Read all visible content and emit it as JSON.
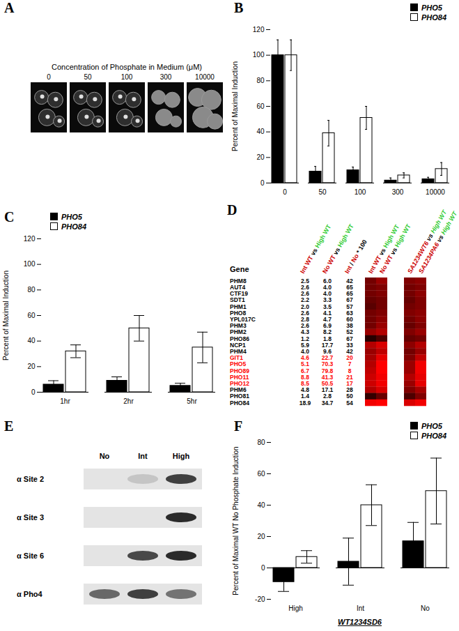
{
  "panel_A": {
    "panel_label": "A",
    "title": "Concentration of Phosphate in Medium (μM)",
    "image_labels": [
      "0",
      "50",
      "100",
      "300",
      "10000"
    ]
  },
  "chart_data": [
    {
      "panel_label": "B",
      "type": "bar",
      "categories": [
        "0",
        "50",
        "100",
        "300",
        "10000"
      ],
      "series": [
        {
          "name": "PHO5",
          "color": "#000000",
          "values": [
            100,
            9,
            10,
            2,
            3
          ],
          "errors": [
            12,
            4,
            2.5,
            2,
            1.5
          ]
        },
        {
          "name": "PHO84",
          "color": "#ffffff",
          "values": [
            100,
            39,
            51,
            6,
            11
          ],
          "errors": [
            12,
            10,
            9,
            2,
            5
          ]
        }
      ],
      "ylim": [
        0,
        120
      ],
      "yticks": [
        0,
        20,
        40,
        60,
        80,
        100,
        120
      ],
      "y_label": "Percent of Maximal Induction",
      "legend": "top-right",
      "grid": false
    },
    {
      "panel_label": "C",
      "type": "bar",
      "categories": [
        "1hr",
        "2hr",
        "5hr"
      ],
      "series": [
        {
          "name": "PHO5",
          "color": "#000000",
          "values": [
            6,
            9,
            5
          ],
          "errors": [
            3,
            3,
            2
          ]
        },
        {
          "name": "PHO84",
          "color": "#ffffff",
          "values": [
            32,
            50,
            35
          ],
          "errors": [
            5,
            10,
            12
          ]
        }
      ],
      "ylim": [
        0,
        120
      ],
      "yticks": [
        0,
        20,
        40,
        60,
        80,
        100,
        120
      ],
      "y_label": "Percent of Maximal Induction",
      "legend": "top-left",
      "grid": false
    },
    {
      "panel_label": "F",
      "type": "bar",
      "categories": [
        "High",
        "Int",
        "No"
      ],
      "series": [
        {
          "name": "PHO5",
          "color": "#000000",
          "values": [
            -9,
            4,
            17
          ],
          "errors": [
            6,
            15,
            12
          ]
        },
        {
          "name": "PHO84",
          "color": "#ffffff",
          "values": [
            7,
            40,
            49
          ],
          "errors": [
            4,
            13,
            21
          ]
        }
      ],
      "ylim": [
        -20,
        80
      ],
      "yticks": [
        -20,
        0,
        20,
        40,
        60,
        80
      ],
      "y_label": "Percent of Maximal WT No Phosphate Induction",
      "x_label": "WT1234SD6",
      "legend": "top-right",
      "grid": false
    }
  ],
  "panel_D": {
    "panel_label": "D",
    "gene_header": "Gene",
    "number_headers": [
      [
        {
          "text": "Int WT",
          "color": "#cc0000"
        },
        {
          "text": " vs ",
          "color": "#000000"
        },
        {
          "text": "High WT",
          "color": "#33cc33"
        }
      ],
      [
        {
          "text": "No WT",
          "color": "#cc0000"
        },
        {
          "text": " vs ",
          "color": "#000000"
        },
        {
          "text": "High WT",
          "color": "#33cc33"
        }
      ],
      [
        {
          "text": "Int",
          "color": "#cc0000"
        },
        {
          "text": " / ",
          "color": "#000000"
        },
        {
          "text": "No",
          "color": "#cc0000"
        },
        {
          "text": " * 100",
          "color": "#000000"
        }
      ]
    ],
    "heatmap_left_headers": [
      [
        {
          "text": "Int WT",
          "color": "#cc0000"
        },
        {
          "text": " vs ",
          "color": "#000000"
        },
        {
          "text": "High WT",
          "color": "#33cc33"
        }
      ],
      [
        {
          "text": "No WT",
          "color": "#cc0000"
        },
        {
          "text": " vs ",
          "color": "#000000"
        },
        {
          "text": "High WT",
          "color": "#33cc33"
        }
      ]
    ],
    "heatmap_right_headers": [
      [
        {
          "text": "SA1234WT6",
          "color": "#cc0000"
        },
        {
          "text": " vs ",
          "color": "#000000"
        },
        {
          "text": "High WT",
          "color": "#33cc33"
        }
      ],
      [
        {
          "text": "SA1234PA6",
          "color": "#cc0000"
        },
        {
          "text": " vs ",
          "color": "#000000"
        },
        {
          "text": "High WT",
          "color": "#33cc33"
        }
      ]
    ],
    "color_range": [
      0,
      1
    ],
    "rows": [
      {
        "gene": "PHM8",
        "values": [
          "2.5",
          "6.0",
          "42"
        ],
        "color": "#000000",
        "heat_left": [
          0.45,
          0.6
        ],
        "heat_right": [
          0.5,
          0.55
        ]
      },
      {
        "gene": "AUT4",
        "values": [
          "2.6",
          "4.0",
          "65"
        ],
        "color": "#000000",
        "heat_left": [
          0.45,
          0.5
        ],
        "heat_right": [
          0.45,
          0.5
        ]
      },
      {
        "gene": "CTF19",
        "values": [
          "2.6",
          "4.0",
          "65"
        ],
        "color": "#000000",
        "heat_left": [
          0.45,
          0.5
        ],
        "heat_right": [
          0.45,
          0.55
        ]
      },
      {
        "gene": "SDT1",
        "values": [
          "2.2",
          "3.3",
          "67"
        ],
        "color": "#000000",
        "heat_left": [
          0.4,
          0.45
        ],
        "heat_right": [
          0.4,
          0.5
        ]
      },
      {
        "gene": "PHM1",
        "values": [
          "2.0",
          "3.5",
          "57"
        ],
        "color": "#000000",
        "heat_left": [
          0.35,
          0.45
        ],
        "heat_right": [
          0.45,
          0.5
        ]
      },
      {
        "gene": "PHO8",
        "values": [
          "2.6",
          "4.1",
          "63"
        ],
        "color": "#000000",
        "heat_left": [
          0.45,
          0.5
        ],
        "heat_right": [
          0.5,
          0.55
        ]
      },
      {
        "gene": "YPL017C",
        "values": [
          "2.8",
          "4.7",
          "60"
        ],
        "color": "#000000",
        "heat_left": [
          0.45,
          0.55
        ],
        "heat_right": [
          0.45,
          0.55
        ]
      },
      {
        "gene": "PHM3",
        "values": [
          "2.6",
          "6.9",
          "38"
        ],
        "color": "#000000",
        "heat_left": [
          0.45,
          0.6
        ],
        "heat_right": [
          0.4,
          0.5
        ]
      },
      {
        "gene": "PHM2",
        "values": [
          "4.3",
          "8.2",
          "52"
        ],
        "color": "#000000",
        "heat_left": [
          0.6,
          0.7
        ],
        "heat_right": [
          0.5,
          0.6
        ]
      },
      {
        "gene": "PHO86",
        "values": [
          "1.2",
          "1.8",
          "67"
        ],
        "color": "#000000",
        "heat_left": [
          0.15,
          0.3
        ],
        "heat_right": [
          0.4,
          0.45
        ]
      },
      {
        "gene": "NCP1",
        "values": [
          "5.9",
          "17.7",
          "33"
        ],
        "color": "#000000",
        "heat_left": [
          0.7,
          0.85
        ],
        "heat_right": [
          0.55,
          0.7
        ]
      },
      {
        "gene": "PHM4",
        "values": [
          "4.0",
          "9.6",
          "42"
        ],
        "color": "#000000",
        "heat_left": [
          0.6,
          0.75
        ],
        "heat_right": [
          0.45,
          0.6
        ]
      },
      {
        "gene": "GIT1",
        "values": [
          "4.6",
          "22.7",
          "20"
        ],
        "color": "#ff0000",
        "heat_left": [
          0.65,
          0.9
        ],
        "heat_right": [
          0.5,
          0.75
        ]
      },
      {
        "gene": "PHO5",
        "values": [
          "5.1",
          "70.3",
          "7"
        ],
        "color": "#ff0000",
        "heat_left": [
          0.7,
          1.0
        ],
        "heat_right": [
          0.6,
          0.95
        ]
      },
      {
        "gene": "PHO89",
        "values": [
          "6.7",
          "79.8",
          "8"
        ],
        "color": "#ff0000",
        "heat_left": [
          0.75,
          1.0
        ],
        "heat_right": [
          0.6,
          0.95
        ]
      },
      {
        "gene": "PHO11",
        "values": [
          "8.8",
          "41.3",
          "21"
        ],
        "color": "#ff0000",
        "heat_left": [
          0.8,
          0.95
        ],
        "heat_right": [
          0.7,
          0.9
        ]
      },
      {
        "gene": "PHO12",
        "values": [
          "8.5",
          "50.5",
          "17"
        ],
        "color": "#ff0000",
        "heat_left": [
          0.8,
          0.95
        ],
        "heat_right": [
          0.6,
          0.9
        ]
      },
      {
        "gene": "PHM6",
        "values": [
          "4.8",
          "17.1",
          "28"
        ],
        "color": "#000000",
        "heat_left": [
          0.7,
          0.85
        ],
        "heat_right": [
          0.5,
          0.65
        ]
      },
      {
        "gene": "PHO81",
        "values": [
          "1.4",
          "2.8",
          "50"
        ],
        "color": "#000000",
        "heat_left": [
          0.2,
          0.4
        ],
        "heat_right": [
          0.3,
          0.5
        ]
      },
      {
        "gene": "PHO84",
        "values": [
          "18.9",
          "34.7",
          "54"
        ],
        "color": "#000000",
        "heat_left": [
          0.95,
          1.0
        ],
        "heat_right": [
          0.85,
          0.95
        ]
      }
    ]
  },
  "panel_E": {
    "panel_label": "E",
    "lanes": [
      "No",
      "Int",
      "High"
    ],
    "rows": [
      {
        "label": "α Site 2",
        "bands": [
          0,
          0.15,
          0.8
        ]
      },
      {
        "label": "α Site 3",
        "bands": [
          0,
          0,
          0.9
        ]
      },
      {
        "label": "α Site 6",
        "bands": [
          0,
          0.75,
          0.9
        ]
      },
      {
        "label": "α Pho4",
        "bands": [
          0.6,
          0.8,
          0.55
        ]
      }
    ]
  }
}
